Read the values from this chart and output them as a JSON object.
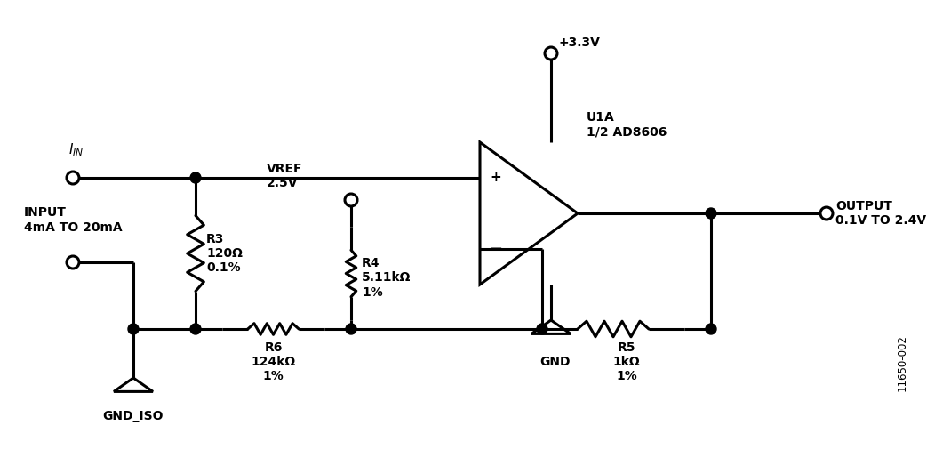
{
  "bg_color": "#ffffff",
  "line_color": "#000000",
  "lw": 2.2,
  "fig_width": 10.24,
  "fig_height": 4.94,
  "labels": {
    "i_in": "I$_{IN}$",
    "input": "INPUT\n4mA TO 20mA",
    "vref": "VREF\n2.5V",
    "r3": "R3\n120Ω\n0.1%",
    "r4": "R4\n5.11kΩ\n1%",
    "r5": "R5\n1kΩ\n1%",
    "r6": "R6\n124kΩ\n1%",
    "u1a": "U1A\n1/2 AD8606",
    "vcc": "+3.3V",
    "gnd_iso": "GND_ISO",
    "gnd": "GND",
    "output": "OUTPUT\n0.1V TO 2.4V",
    "ref_num": "11650-002"
  }
}
